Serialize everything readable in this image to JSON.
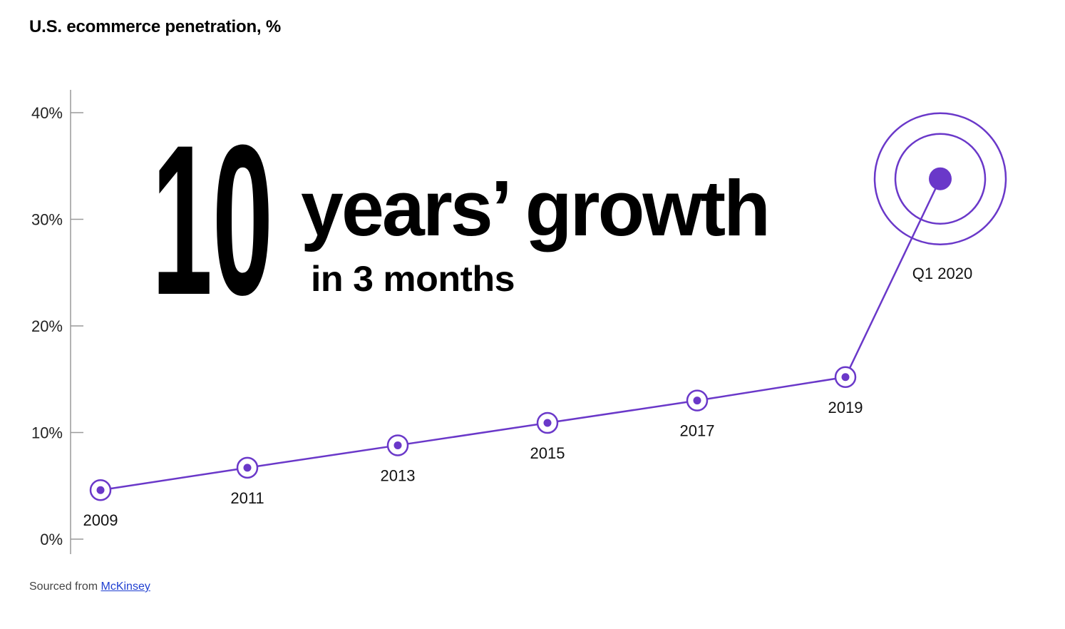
{
  "title": "U.S. ecommerce penetration, %",
  "headline": {
    "number": "10",
    "main": "years’ growth",
    "sub": "in 3 months"
  },
  "source": {
    "prefix": "Sourced from ",
    "link_text": "McKinsey"
  },
  "colors": {
    "accent": "#6a38c9",
    "axis": "#9a9a9a",
    "text": "#000000"
  },
  "chart_data": {
    "type": "line",
    "title": "U.S. ecommerce penetration, %",
    "xlabel": "",
    "ylabel": "",
    "ylim": [
      0,
      40
    ],
    "yticks": [
      0,
      10,
      20,
      30,
      40
    ],
    "ytick_labels": [
      "0%",
      "10%",
      "20%",
      "30%",
      "40%"
    ],
    "grid": false,
    "legend": "none",
    "points": [
      {
        "label": "2009",
        "value": 4.6
      },
      {
        "label": "2011",
        "value": 6.7
      },
      {
        "label": "2013",
        "value": 8.8
      },
      {
        "label": "2015",
        "value": 10.9
      },
      {
        "label": "2017",
        "value": 13.0
      },
      {
        "label": "2019",
        "value": 15.2
      },
      {
        "label": "Q1 2020",
        "value": 33.8
      }
    ]
  }
}
